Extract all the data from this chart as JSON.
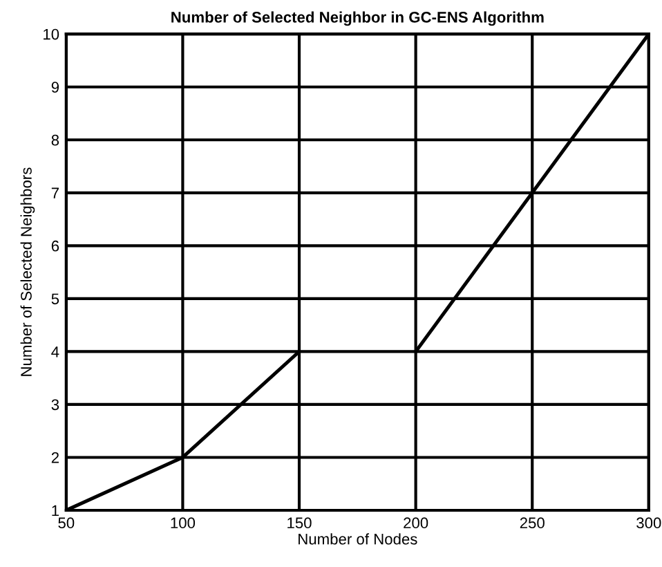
{
  "chart_data": {
    "type": "line",
    "title": "Number of Selected Neighbor in GC-ENS Algorithm",
    "xlabel": "Number of Nodes",
    "ylabel": "Number of Selected Neighbors",
    "series": [
      {
        "color": "#000000",
        "x": [
          50,
          100,
          150
        ],
        "values": [
          1,
          2,
          4
        ]
      },
      {
        "color": "#000000",
        "x": [
          200,
          250,
          300
        ],
        "values": [
          4,
          7,
          10
        ]
      }
    ],
    "xlim": [
      50,
      300
    ],
    "xticks": [
      50,
      100,
      150,
      200,
      250,
      300
    ],
    "ylim": [
      1,
      10
    ],
    "yticks": [
      1,
      2,
      3,
      4,
      5,
      6,
      7,
      8,
      9,
      10
    ],
    "grid": true,
    "line_style": "solid",
    "marker": "none"
  }
}
